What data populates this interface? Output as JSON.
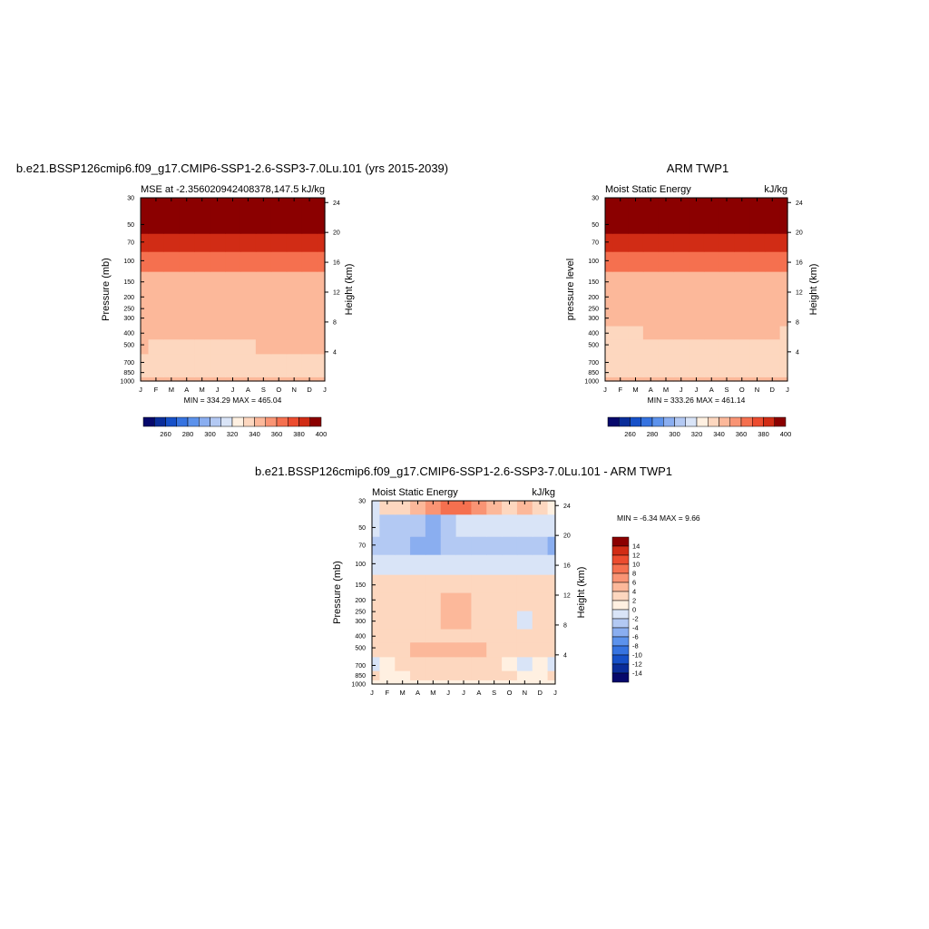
{
  "chart_data": [
    {
      "type": "contour",
      "title": "b.e21.BSSP126cmip6.f09_g17.CMIP6-SSP1-2.6-SSP3-7.0Lu.101 (yrs 2015-2039)",
      "subtitle_left": "MSE at -2.356020942408378,147.5",
      "subtitle_right": "kJ/kg",
      "ylabel": "Pressure (mb)",
      "ylabel_right": "Height (km)",
      "x": [
        "J",
        "F",
        "M",
        "A",
        "M",
        "J",
        "J",
        "A",
        "S",
        "O",
        "N",
        "D",
        "J"
      ],
      "pressure_ticks": [
        30,
        50,
        70,
        100,
        150,
        200,
        250,
        300,
        400,
        500,
        700,
        850,
        1000
      ],
      "height_ticks": [
        4,
        8,
        12,
        16,
        20,
        24
      ],
      "footer": "MIN = 334.29   MAX = 465.04",
      "y_values": [
        1000,
        850,
        700,
        500,
        400,
        300,
        200,
        150,
        100,
        70,
        50,
        30
      ],
      "z": [
        [
          344,
          343,
          343,
          343,
          343,
          343,
          343,
          343,
          343,
          343,
          343,
          344,
          344
        ],
        [
          338,
          338,
          338,
          338,
          338,
          338,
          338,
          338,
          338,
          338,
          338,
          338,
          338
        ],
        [
          338,
          338,
          338,
          338,
          338,
          338,
          338,
          338,
          338,
          338,
          338,
          338,
          338
        ],
        [
          340,
          339,
          338,
          337,
          337,
          337,
          338,
          339,
          341,
          342,
          342,
          341,
          340
        ],
        [
          341,
          341,
          341,
          341,
          341,
          341,
          341,
          341,
          342,
          342,
          342,
          342,
          341
        ],
        [
          345,
          345,
          345,
          345,
          345,
          345,
          345,
          345,
          345,
          345,
          345,
          345,
          345
        ],
        [
          346,
          346,
          346,
          346,
          346,
          346,
          346,
          346,
          346,
          346,
          346,
          346,
          346
        ],
        [
          348,
          348,
          348,
          348,
          348,
          348,
          348,
          348,
          348,
          348,
          348,
          348,
          348
        ],
        [
          362,
          362,
          363,
          364,
          365,
          366,
          366,
          366,
          365,
          364,
          363,
          362,
          362
        ],
        [
          382,
          383,
          384,
          385,
          387,
          388,
          388,
          388,
          387,
          385,
          384,
          383,
          382
        ],
        [
          396,
          397,
          398,
          399,
          400,
          401,
          401,
          401,
          400,
          399,
          398,
          397,
          396
        ],
        [
          430,
          430,
          430,
          430,
          430,
          430,
          430,
          430,
          430,
          430,
          430,
          430,
          430
        ]
      ],
      "colorbar": {
        "levels": [
          250,
          260,
          270,
          280,
          290,
          300,
          310,
          320,
          330,
          340,
          350,
          360,
          370,
          380,
          390,
          400
        ],
        "labels": [
          260,
          280,
          300,
          320,
          340,
          360,
          380,
          400
        ]
      }
    },
    {
      "type": "contour",
      "title": "ARM TWP1",
      "subtitle_left": "Moist Static Energy",
      "subtitle_right": "kJ/kg",
      "ylabel": "pressure level",
      "ylabel_right": "Height (km)",
      "x": [
        "J",
        "F",
        "M",
        "A",
        "M",
        "J",
        "J",
        "A",
        "S",
        "O",
        "N",
        "D",
        "J"
      ],
      "pressure_ticks": [
        30,
        50,
        70,
        100,
        150,
        200,
        250,
        300,
        400,
        500,
        700,
        850,
        1000
      ],
      "height_ticks": [
        4,
        8,
        12,
        16,
        20,
        24
      ],
      "footer": "MIN = 333.26   MAX = 461.14",
      "y_values": [
        1000,
        850,
        700,
        500,
        400,
        300,
        200,
        150,
        100,
        70,
        50,
        30
      ],
      "z": [
        [
          343,
          343,
          343,
          343,
          343,
          343,
          343,
          343,
          343,
          343,
          343,
          343,
          343
        ],
        [
          338,
          338,
          338,
          338,
          338,
          338,
          338,
          338,
          338,
          338,
          338,
          338,
          338
        ],
        [
          337,
          337,
          337,
          337,
          337,
          337,
          337,
          337,
          337,
          337,
          337,
          337,
          337
        ],
        [
          338,
          338,
          338,
          338,
          338,
          338,
          338,
          338,
          338,
          338,
          338,
          338,
          338
        ],
        [
          339,
          339,
          339,
          340,
          340,
          341,
          342,
          342,
          342,
          341,
          341,
          340,
          339
        ],
        [
          343,
          343,
          343,
          343,
          343,
          343,
          343,
          343,
          343,
          343,
          343,
          343,
          343
        ],
        [
          345,
          345,
          345,
          345,
          345,
          345,
          345,
          345,
          345,
          345,
          345,
          345,
          345
        ],
        [
          348,
          348,
          348,
          348,
          348,
          348,
          348,
          348,
          348,
          348,
          348,
          348,
          348
        ],
        [
          362,
          362,
          363,
          364,
          365,
          366,
          366,
          366,
          365,
          364,
          363,
          362,
          362
        ],
        [
          382,
          383,
          384,
          385,
          387,
          388,
          388,
          388,
          387,
          385,
          384,
          383,
          382
        ],
        [
          396,
          397,
          398,
          399,
          400,
          401,
          401,
          401,
          400,
          399,
          398,
          397,
          396
        ],
        [
          430,
          430,
          430,
          430,
          430,
          430,
          430,
          430,
          430,
          430,
          430,
          430,
          430
        ]
      ],
      "colorbar": {
        "levels": [
          250,
          260,
          270,
          280,
          290,
          300,
          310,
          320,
          330,
          340,
          350,
          360,
          370,
          380,
          390,
          400
        ],
        "labels": [
          260,
          280,
          300,
          320,
          340,
          360,
          380,
          400
        ]
      }
    },
    {
      "type": "contour",
      "title": "b.e21.BSSP126cmip6.f09_g17.CMIP6-SSP1-2.6-SSP3-7.0Lu.101 - ARM TWP1",
      "subtitle_left": "Moist Static Energy",
      "subtitle_right": "kJ/kg",
      "ylabel": "Pressure (mb)",
      "ylabel_right": "Height (km)",
      "x": [
        "J",
        "F",
        "M",
        "A",
        "M",
        "J",
        "J",
        "A",
        "S",
        "O",
        "N",
        "D",
        "J"
      ],
      "pressure_ticks": [
        30,
        50,
        70,
        100,
        150,
        200,
        250,
        300,
        400,
        500,
        700,
        850,
        1000
      ],
      "height_ticks": [
        4,
        8,
        12,
        16,
        20,
        24
      ],
      "annotation": "MIN =  -6.34   MAX =   9.66",
      "y_values": [
        1000,
        850,
        700,
        500,
        400,
        300,
        200,
        150,
        100,
        70,
        50,
        30
      ],
      "z": [
        [
          1,
          1,
          1,
          1,
          1,
          1,
          1,
          1,
          1,
          1,
          1,
          1,
          1
        ],
        [
          2,
          1,
          1,
          2,
          2,
          3,
          3,
          2,
          2,
          2,
          1,
          1,
          2
        ],
        [
          -1,
          1,
          2,
          2,
          2,
          3,
          2,
          2,
          2,
          1,
          -1,
          1,
          -1
        ],
        [
          2,
          2,
          3,
          4,
          4,
          5,
          4,
          4,
          3,
          2,
          2,
          2,
          2
        ],
        [
          2,
          2,
          2,
          3,
          3,
          3,
          3,
          3,
          3,
          2,
          2,
          2,
          2
        ],
        [
          2,
          2,
          2,
          2,
          2,
          4,
          4,
          3,
          2,
          2,
          -1,
          2,
          2
        ],
        [
          2,
          2,
          2,
          2,
          3,
          4,
          4,
          3,
          2,
          2,
          2,
          2,
          2
        ],
        [
          2,
          2,
          2,
          2,
          2,
          2,
          2,
          2,
          2,
          2,
          2,
          2,
          2
        ],
        [
          -2,
          -2,
          -2,
          -2,
          -2,
          -2,
          -2,
          -2,
          -2,
          -2,
          -2,
          -2,
          -2
        ],
        [
          -4,
          -4,
          -4,
          -5,
          -5,
          -4,
          -4,
          -4,
          -4,
          -4,
          -4,
          -4,
          -5
        ],
        [
          -2,
          -3,
          -3,
          -4,
          -5,
          -3,
          -2,
          -2,
          -2,
          -2,
          -2,
          -2,
          -2
        ],
        [
          -1,
          2,
          3,
          4,
          6,
          8,
          9,
          7,
          5,
          2,
          5,
          3,
          1
        ]
      ],
      "colorbar": {
        "levels": [
          -14,
          -12,
          -10,
          -8,
          -6,
          -4,
          -2,
          0,
          2,
          4,
          6,
          8,
          10,
          12,
          14
        ],
        "labels": [
          14,
          12,
          10,
          8,
          6,
          4,
          2,
          0,
          -2,
          -4,
          -6,
          -8,
          -10,
          -12,
          -14
        ]
      }
    }
  ],
  "colors": {
    "seq": [
      "#06086b",
      "#0a2d9a",
      "#1650c8",
      "#3673e0",
      "#5c92ec",
      "#8aaef0",
      "#b3c9f3",
      "#d9e4f7",
      "#fff0e1",
      "#fdd7bf",
      "#fcb89a",
      "#f99474",
      "#f5704f",
      "#ec4c2f",
      "#d12c15",
      "#8b0000"
    ],
    "div": [
      "#06086b",
      "#0a2d9a",
      "#1650c8",
      "#3673e0",
      "#5c92ec",
      "#8aaef0",
      "#b3c9f3",
      "#d9e4f7",
      "#fff0e1",
      "#fdd7bf",
      "#fcb89a",
      "#f99474",
      "#f5704f",
      "#ec4c2f",
      "#d12c15",
      "#8b0000"
    ]
  }
}
